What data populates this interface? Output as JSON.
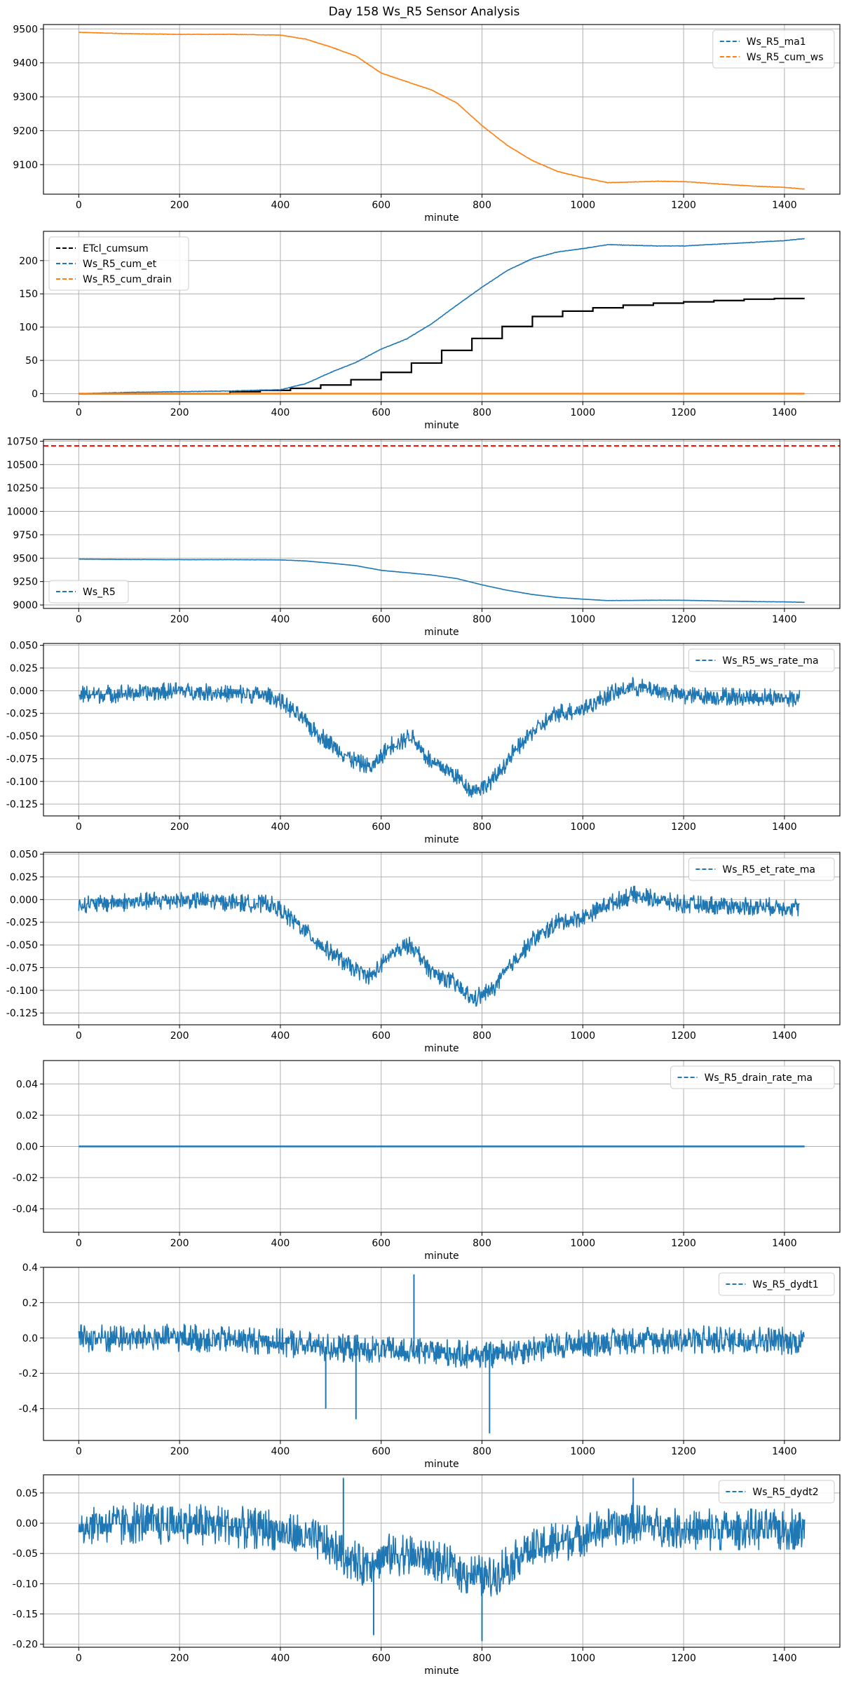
{
  "figure": {
    "title": "Day 158 Ws_R5 Sensor Analysis"
  },
  "chart_data": [
    {
      "type": "line",
      "xlabel": "minute",
      "ylabel": "",
      "xlim": [
        -70,
        1510
      ],
      "ylim": [
        9013,
        9513
      ],
      "xticks": [
        0,
        200,
        400,
        600,
        800,
        1000,
        1200,
        1400
      ],
      "yticks": [
        9100,
        9200,
        9300,
        9400,
        9500
      ],
      "ytick_labels": [
        "9100",
        "9200",
        "9300",
        "9400",
        "9500"
      ],
      "grid": true,
      "legend": "upper right",
      "series": [
        {
          "name": "Ws_R5_ma1",
          "color": "#1f77b4",
          "style": "dashed",
          "legend_only": true,
          "x": [
            0,
            1440
          ],
          "y": [
            9490,
            9030
          ]
        },
        {
          "name": "Ws_R5_cum_ws",
          "color": "#ff7f0e",
          "style": "dashed",
          "noise": 1.5,
          "x": [
            0,
            100,
            200,
            300,
            400,
            450,
            500,
            550,
            600,
            650,
            700,
            750,
            800,
            850,
            900,
            950,
            1000,
            1050,
            1100,
            1150,
            1200,
            1250,
            1300,
            1350,
            1400,
            1440
          ],
          "y": [
            9490,
            9486,
            9484,
            9484,
            9482,
            9470,
            9447,
            9420,
            9370,
            9345,
            9320,
            9282,
            9215,
            9157,
            9112,
            9080,
            9062,
            9047,
            9049,
            9051,
            9050,
            9045,
            9040,
            9036,
            9033,
            9028
          ]
        }
      ]
    },
    {
      "type": "line",
      "xlabel": "minute",
      "ylabel": "",
      "xlim": [
        -70,
        1510
      ],
      "ylim": [
        -12,
        244
      ],
      "xticks": [
        0,
        200,
        400,
        600,
        800,
        1000,
        1200,
        1400
      ],
      "yticks": [
        0,
        50,
        100,
        150,
        200
      ],
      "ytick_labels": [
        "0",
        "50",
        "100",
        "150",
        "200"
      ],
      "grid": true,
      "legend": "upper left",
      "series": [
        {
          "name": "ETcl_cumsum",
          "color": "#000000",
          "style": "step",
          "x": [
            0,
            300,
            360,
            420,
            480,
            540,
            600,
            660,
            720,
            780,
            840,
            900,
            960,
            1020,
            1080,
            1140,
            1200,
            1260,
            1320,
            1380,
            1440
          ],
          "y": [
            0,
            3,
            5,
            8,
            13,
            21,
            32,
            46,
            65,
            83,
            101,
            116,
            124,
            129,
            133,
            136,
            138,
            140,
            142,
            143,
            143
          ]
        },
        {
          "name": "Ws_R5_cum_et",
          "color": "#1f77b4",
          "style": "dashed",
          "noise": 0.8,
          "x": [
            0,
            100,
            200,
            300,
            400,
            450,
            500,
            550,
            600,
            650,
            700,
            750,
            800,
            850,
            900,
            950,
            1000,
            1050,
            1100,
            1150,
            1200,
            1250,
            1300,
            1350,
            1400,
            1440
          ],
          "y": [
            0,
            2,
            3,
            4,
            6,
            15,
            32,
            47,
            67,
            82,
            105,
            133,
            160,
            185,
            203,
            213,
            218,
            224,
            223,
            222,
            222,
            224,
            226,
            228,
            230,
            233
          ]
        },
        {
          "name": "Ws_R5_cum_drain",
          "color": "#ff7f0e",
          "style": "dashed",
          "x": [
            0,
            1440
          ],
          "y": [
            0,
            0
          ]
        }
      ]
    },
    {
      "type": "line",
      "xlabel": "minute",
      "ylabel": "",
      "xlim": [
        -70,
        1510
      ],
      "ylim": [
        8963,
        10768
      ],
      "xticks": [
        0,
        200,
        400,
        600,
        800,
        1000,
        1200,
        1400
      ],
      "yticks": [
        9000,
        9250,
        9500,
        9750,
        10000,
        10250,
        10500,
        10750
      ],
      "ytick_labels": [
        "9000",
        "9250",
        "9500",
        "9750",
        "10000",
        "10250",
        "10500",
        "10750"
      ],
      "grid": true,
      "legend": "lower left",
      "hline": {
        "y": 10700,
        "color": "#ff0000",
        "style": "dashed"
      },
      "series": [
        {
          "name": "Ws_R5",
          "color": "#1f77b4",
          "style": "dashed",
          "noise": 3,
          "x": [
            0,
            100,
            200,
            300,
            400,
            450,
            500,
            550,
            600,
            650,
            700,
            750,
            800,
            850,
            900,
            950,
            1000,
            1050,
            1100,
            1150,
            1200,
            1250,
            1300,
            1350,
            1400,
            1440
          ],
          "y": [
            9490,
            9486,
            9484,
            9484,
            9482,
            9470,
            9447,
            9420,
            9370,
            9345,
            9320,
            9282,
            9215,
            9157,
            9112,
            9080,
            9062,
            9047,
            9049,
            9051,
            9050,
            9045,
            9040,
            9036,
            9033,
            9028
          ]
        }
      ]
    },
    {
      "type": "line",
      "xlabel": "minute",
      "ylabel": "",
      "xlim": [
        -70,
        1510
      ],
      "ylim": [
        -0.138,
        0.052
      ],
      "xticks": [
        0,
        200,
        400,
        600,
        800,
        1000,
        1200,
        1400
      ],
      "yticks": [
        -0.125,
        -0.1,
        -0.075,
        -0.05,
        -0.025,
        0.0,
        0.025,
        0.05
      ],
      "ytick_labels": [
        "-0.125",
        "-0.100",
        "-0.075",
        "-0.050",
        "-0.025",
        "0.000",
        "0.025",
        "0.050"
      ],
      "grid": true,
      "legend": "upper right",
      "series": [
        {
          "name": "Ws_R5_ws_rate_ma",
          "color": "#1f77b4",
          "style": "dashed",
          "noise": 0.02,
          "x": [
            0,
            100,
            200,
            300,
            380,
            420,
            480,
            540,
            580,
            620,
            660,
            700,
            740,
            780,
            820,
            860,
            900,
            950,
            1000,
            1050,
            1100,
            1150,
            1200,
            1300,
            1400,
            1430
          ],
          "y": [
            -0.005,
            -0.003,
            0.0,
            -0.003,
            -0.005,
            -0.02,
            -0.05,
            -0.075,
            -0.085,
            -0.06,
            -0.05,
            -0.08,
            -0.09,
            -0.11,
            -0.1,
            -0.07,
            -0.045,
            -0.025,
            -0.02,
            -0.005,
            0.005,
            0.0,
            -0.005,
            -0.007,
            -0.008,
            -0.008
          ]
        }
      ]
    },
    {
      "type": "line",
      "xlabel": "minute",
      "ylabel": "",
      "xlim": [
        -70,
        1510
      ],
      "ylim": [
        -0.138,
        0.052
      ],
      "xticks": [
        0,
        200,
        400,
        600,
        800,
        1000,
        1200,
        1400
      ],
      "yticks": [
        -0.125,
        -0.1,
        -0.075,
        -0.05,
        -0.025,
        0.0,
        0.025,
        0.05
      ],
      "ytick_labels": [
        "-0.125",
        "-0.100",
        "-0.075",
        "-0.050",
        "-0.025",
        "0.000",
        "0.025",
        "0.050"
      ],
      "grid": true,
      "legend": "upper right",
      "series": [
        {
          "name": "Ws_R5_et_rate_ma",
          "color": "#1f77b4",
          "style": "dashed",
          "noise": 0.02,
          "x": [
            0,
            100,
            200,
            300,
            380,
            420,
            480,
            540,
            580,
            620,
            660,
            700,
            740,
            780,
            820,
            860,
            900,
            950,
            1000,
            1050,
            1100,
            1150,
            1200,
            1300,
            1400,
            1430
          ],
          "y": [
            -0.005,
            -0.003,
            0.0,
            -0.003,
            -0.005,
            -0.02,
            -0.05,
            -0.075,
            -0.085,
            -0.06,
            -0.05,
            -0.08,
            -0.09,
            -0.11,
            -0.1,
            -0.07,
            -0.045,
            -0.025,
            -0.02,
            -0.005,
            0.005,
            0.0,
            -0.005,
            -0.007,
            -0.008,
            -0.008
          ]
        }
      ]
    },
    {
      "type": "line",
      "xlabel": "minute",
      "ylabel": "",
      "xlim": [
        -70,
        1510
      ],
      "ylim": [
        -0.055,
        0.055
      ],
      "xticks": [
        0,
        200,
        400,
        600,
        800,
        1000,
        1200,
        1400
      ],
      "yticks": [
        -0.04,
        -0.02,
        0.0,
        0.02,
        0.04
      ],
      "ytick_labels": [
        "-0.04",
        "-0.02",
        "0.00",
        "0.02",
        "0.04"
      ],
      "grid": true,
      "legend": "upper right",
      "series": [
        {
          "name": "Ws_R5_drain_rate_ma",
          "color": "#1f77b4",
          "style": "dashed",
          "x": [
            0,
            1440
          ],
          "y": [
            0.0,
            0.0
          ]
        }
      ]
    },
    {
      "type": "line",
      "xlabel": "minute",
      "ylabel": "",
      "xlim": [
        -70,
        1510
      ],
      "ylim": [
        -0.58,
        0.4
      ],
      "xticks": [
        0,
        200,
        400,
        600,
        800,
        1000,
        1200,
        1400
      ],
      "yticks": [
        -0.4,
        -0.2,
        0.0,
        0.2,
        0.4
      ],
      "ytick_labels": [
        "-0.4",
        "-0.2",
        "0.0",
        "0.2",
        "0.4"
      ],
      "grid": true,
      "legend": "upper right",
      "series": [
        {
          "name": "Ws_R5_dydt1",
          "color": "#1f77b4",
          "style": "dashed",
          "noise": 0.16,
          "x": [
            0,
            200,
            380,
            480,
            600,
            700,
            800,
            900,
            1000,
            1100,
            1200,
            1300,
            1440
          ],
          "y": [
            0.0,
            0.0,
            -0.02,
            -0.05,
            -0.07,
            -0.08,
            -0.1,
            -0.06,
            -0.03,
            -0.01,
            -0.01,
            -0.01,
            -0.02
          ],
          "spikes": [
            {
              "x": 665,
              "y": 0.36
            },
            {
              "x": 815,
              "y": -0.54
            },
            {
              "x": 490,
              "y": -0.4
            },
            {
              "x": 550,
              "y": -0.46
            }
          ]
        }
      ]
    },
    {
      "type": "line",
      "xlabel": "minute",
      "ylabel": "",
      "xlim": [
        -70,
        1510
      ],
      "ylim": [
        -0.205,
        0.08
      ],
      "xticks": [
        0,
        200,
        400,
        600,
        800,
        1000,
        1200,
        1400
      ],
      "yticks": [
        -0.2,
        -0.15,
        -0.1,
        -0.05,
        0.0,
        0.05
      ],
      "ytick_labels": [
        "-0.20",
        "-0.15",
        "-0.10",
        "-0.05",
        "0.00",
        "0.05"
      ],
      "grid": true,
      "legend": "upper right",
      "series": [
        {
          "name": "Ws_R5_dydt2",
          "color": "#1f77b4",
          "style": "dashed",
          "noise": 0.07,
          "x": [
            0,
            200,
            380,
            480,
            560,
            620,
            700,
            760,
            820,
            880,
            960,
            1040,
            1100,
            1200,
            1300,
            1440
          ],
          "y": [
            -0.002,
            0.0,
            -0.01,
            -0.03,
            -0.07,
            -0.05,
            -0.06,
            -0.08,
            -0.09,
            -0.05,
            -0.03,
            -0.01,
            0.0,
            -0.01,
            -0.01,
            -0.01
          ],
          "spikes": [
            {
              "x": 525,
              "y": 0.075
            },
            {
              "x": 1100,
              "y": 0.075
            },
            {
              "x": 800,
              "y": -0.195
            },
            {
              "x": 585,
              "y": -0.185
            }
          ]
        }
      ]
    }
  ]
}
